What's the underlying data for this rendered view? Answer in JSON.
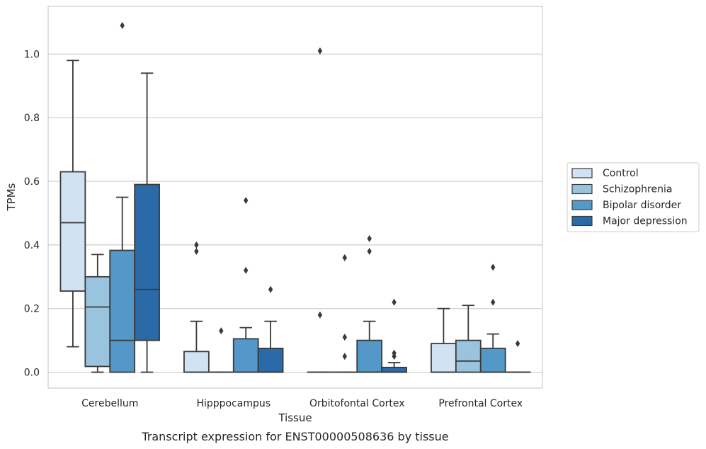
{
  "caption": "Transcript expression for ENST00000508636 by tissue",
  "chart_data": {
    "type": "box",
    "xlabel": "Tissue",
    "ylabel": "TPMs",
    "ylim": [
      -0.05,
      1.15
    ],
    "yticks": [
      0.0,
      0.2,
      0.4,
      0.6,
      0.8,
      1.0
    ],
    "ytick_labels": [
      "0.0",
      "0.2",
      "0.4",
      "0.6",
      "0.8",
      "1.0"
    ],
    "grid": "horizontal",
    "legend_position": "right",
    "categories": [
      "Cerebellum",
      "Hipppocampus",
      "Orbitofontal Cortex",
      "Prefrontal Cortex"
    ],
    "series": [
      {
        "name": "Control",
        "color": "#d1e2f2",
        "boxes": [
          {
            "whislo": 0.08,
            "q1": 0.255,
            "med": 0.47,
            "q3": 0.63,
            "whishi": 0.98,
            "fliers": []
          },
          {
            "whislo": 0.0,
            "q1": 0.0,
            "med": 0.0,
            "q3": 0.065,
            "whishi": 0.16,
            "fliers": [
              0.38,
              0.4
            ]
          },
          {
            "whislo": 0.0,
            "q1": 0.0,
            "med": 0.0,
            "q3": 0.0,
            "whishi": 0.0,
            "fliers": [
              0.18,
              1.01
            ]
          },
          {
            "whislo": 0.0,
            "q1": 0.0,
            "med": 0.0,
            "q3": 0.09,
            "whishi": 0.2,
            "fliers": []
          }
        ]
      },
      {
        "name": "Schizophrenia",
        "color": "#9ac3dd",
        "boxes": [
          {
            "whislo": 0.0,
            "q1": 0.018,
            "med": 0.205,
            "q3": 0.3,
            "whishi": 0.37,
            "fliers": []
          },
          {
            "whislo": 0.0,
            "q1": 0.0,
            "med": 0.0,
            "q3": 0.0,
            "whishi": 0.0,
            "fliers": [
              0.13
            ]
          },
          {
            "whislo": 0.0,
            "q1": 0.0,
            "med": 0.0,
            "q3": 0.0,
            "whishi": 0.0,
            "fliers": [
              0.05,
              0.11,
              0.36
            ]
          },
          {
            "whislo": 0.0,
            "q1": 0.0,
            "med": 0.035,
            "q3": 0.1,
            "whishi": 0.21,
            "fliers": []
          }
        ]
      },
      {
        "name": "Bipolar disorder",
        "color": "#5398c8",
        "boxes": [
          {
            "whislo": 0.0,
            "q1": 0.0,
            "med": 0.1,
            "q3": 0.383,
            "whishi": 0.55,
            "fliers": [
              1.09
            ]
          },
          {
            "whislo": 0.0,
            "q1": 0.0,
            "med": 0.0,
            "q3": 0.105,
            "whishi": 0.14,
            "fliers": [
              0.32,
              0.54
            ]
          },
          {
            "whislo": 0.0,
            "q1": 0.0,
            "med": 0.0,
            "q3": 0.1,
            "whishi": 0.16,
            "fliers": [
              0.38,
              0.42
            ]
          },
          {
            "whislo": 0.0,
            "q1": 0.0,
            "med": 0.0,
            "q3": 0.075,
            "whishi": 0.12,
            "fliers": [
              0.22,
              0.33
            ]
          }
        ]
      },
      {
        "name": "Major depression",
        "color": "#2a6aa8",
        "boxes": [
          {
            "whislo": 0.0,
            "q1": 0.1,
            "med": 0.26,
            "q3": 0.59,
            "whishi": 0.94,
            "fliers": []
          },
          {
            "whislo": 0.0,
            "q1": 0.0,
            "med": 0.0,
            "q3": 0.075,
            "whishi": 0.16,
            "fliers": [
              0.26
            ]
          },
          {
            "whislo": 0.0,
            "q1": 0.0,
            "med": 0.0,
            "q3": 0.015,
            "whishi": 0.03,
            "fliers": [
              0.05,
              0.06,
              0.22
            ]
          },
          {
            "whislo": 0.0,
            "q1": 0.0,
            "med": 0.0,
            "q3": 0.0,
            "whishi": 0.0,
            "fliers": [
              0.09
            ]
          }
        ]
      }
    ]
  }
}
